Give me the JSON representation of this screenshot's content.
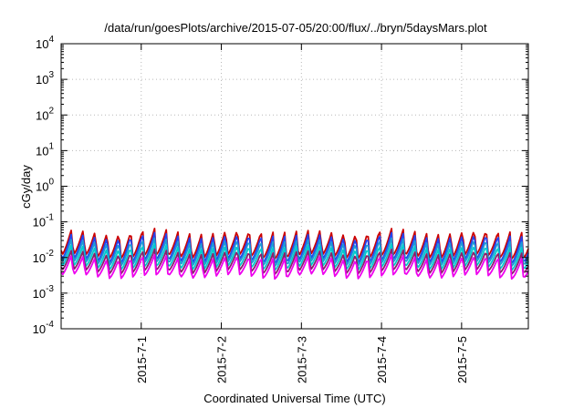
{
  "chart_data": {
    "type": "line",
    "title": "/data/run/goesPlots/archive/2015-07-05/20:00/flux/../bryn/5daysMars.plot",
    "xlabel": "Coordinated Universal Time (UTC)",
    "ylabel": "cGy/day",
    "yscale": "log",
    "ylim": [
      0.0001,
      10000
    ],
    "xlim": [
      "2015-06-30T00:00",
      "2015-07-05T20:00"
    ],
    "y_tick_labels": [
      {
        "base": "10",
        "exp": "4"
      },
      {
        "base": "10",
        "exp": "3"
      },
      {
        "base": "10",
        "exp": "2"
      },
      {
        "base": "10",
        "exp": "1"
      },
      {
        "base": "10",
        "exp": "0"
      },
      {
        "base": "10",
        "exp": "-1"
      },
      {
        "base": "10",
        "exp": "-2"
      },
      {
        "base": "10",
        "exp": "-3"
      },
      {
        "base": "10",
        "exp": "-4"
      }
    ],
    "x_tick_labels": [
      "2015-7-1",
      "2015-7-2",
      "2015-7-3",
      "2015-7-4",
      "2015-7-5"
    ],
    "grid": true,
    "legend": "none",
    "series": [
      {
        "color": "#cc0000",
        "peak": 0.065,
        "trough": 0.012
      },
      {
        "color": "#2244ee",
        "peak": 0.05,
        "trough": 0.009
      },
      {
        "color": "#1e9ad6",
        "peak": 0.035,
        "trough": 0.0075
      },
      {
        "color": "#00cccc",
        "peak": 0.024,
        "trough": 0.0058
      },
      {
        "color": "#8a1f6e",
        "peak": 0.017,
        "trough": 0.0045
      },
      {
        "color": "#ee00ee",
        "peak": 0.012,
        "trough": 0.0033
      }
    ]
  }
}
